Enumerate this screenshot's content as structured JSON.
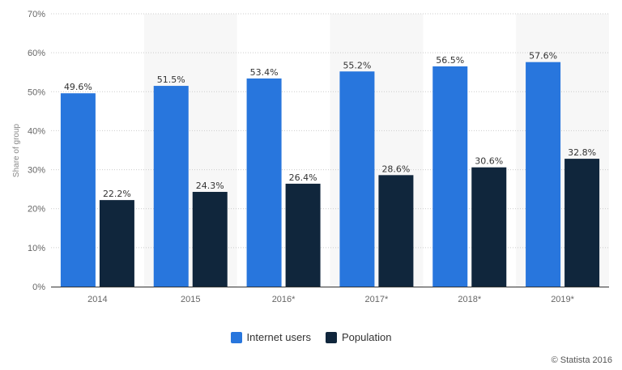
{
  "chart_data": {
    "type": "bar",
    "categories": [
      "2014",
      "2015",
      "2016*",
      "2017*",
      "2018*",
      "2019*"
    ],
    "series": [
      {
        "name": "Internet users",
        "color": "#2876dd",
        "values": [
          49.6,
          51.5,
          53.4,
          55.2,
          56.5,
          57.6
        ],
        "labels": [
          "49.6%",
          "51.5%",
          "53.4%",
          "55.2%",
          "56.5%",
          "57.6%"
        ]
      },
      {
        "name": "Population",
        "color": "#10263c",
        "values": [
          22.2,
          24.3,
          26.4,
          28.6,
          30.6,
          32.8
        ],
        "labels": [
          "22.2%",
          "24.3%",
          "26.4%",
          "28.6%",
          "30.6%",
          "32.8%"
        ]
      }
    ],
    "ylabel": "Share of group",
    "xlabel": "",
    "ylim": [
      0,
      70
    ],
    "yticks": [
      "0%",
      "10%",
      "20%",
      "30%",
      "40%",
      "50%",
      "60%",
      "70%"
    ],
    "grid": true,
    "legend_position": "bottom"
  },
  "credit": "© Statista 2016"
}
